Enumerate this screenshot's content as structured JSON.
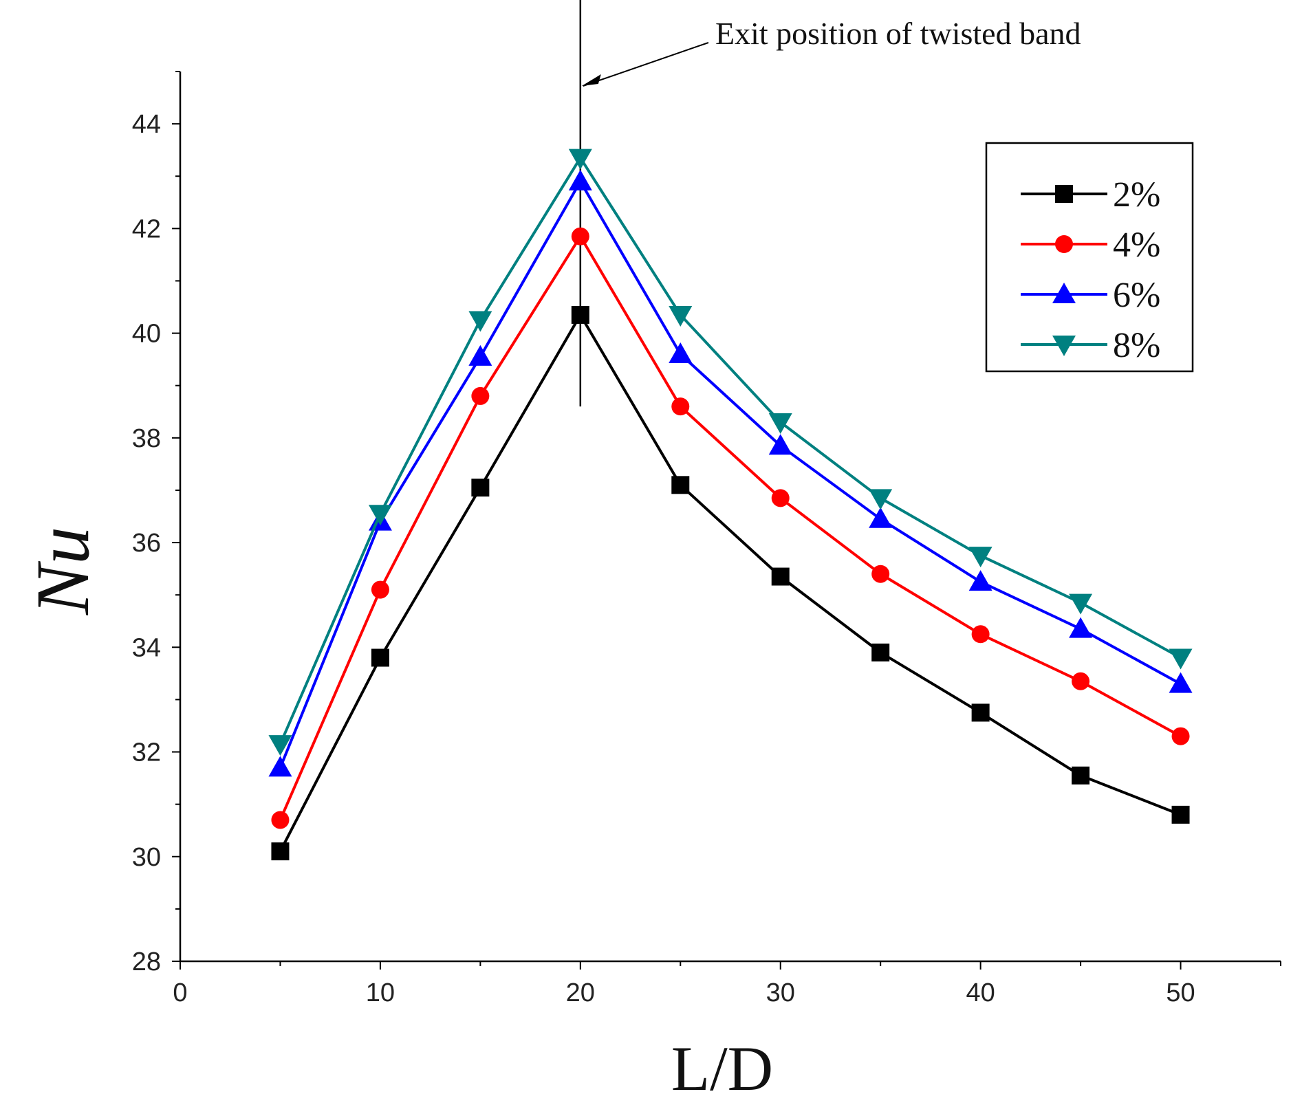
{
  "chart_data": {
    "type": "line",
    "title": "",
    "xlabel": "L/D",
    "ylabel": "Nu",
    "xlim": [
      0,
      55
    ],
    "ylim": [
      28,
      45
    ],
    "xticks": [
      0,
      10,
      20,
      30,
      40,
      50
    ],
    "yticks": [
      28,
      30,
      32,
      34,
      36,
      38,
      40,
      42,
      44
    ],
    "x": [
      5,
      10,
      15,
      20,
      25,
      30,
      35,
      40,
      45,
      50
    ],
    "series": [
      {
        "name": "2%",
        "color": "#000000",
        "marker": "square",
        "values": [
          30.1,
          33.8,
          37.05,
          40.35,
          37.1,
          35.35,
          33.9,
          32.75,
          31.55,
          30.8
        ]
      },
      {
        "name": "4%",
        "color": "#ff0000",
        "marker": "circle",
        "values": [
          30.7,
          35.1,
          38.8,
          41.85,
          38.6,
          36.85,
          35.4,
          34.25,
          33.35,
          32.3
        ]
      },
      {
        "name": "6%",
        "color": "#0000ff",
        "marker": "triangle-up",
        "values": [
          31.7,
          36.4,
          39.55,
          42.9,
          39.6,
          37.85,
          36.45,
          35.25,
          34.35,
          33.3
        ]
      },
      {
        "name": "8%",
        "color": "#008080",
        "marker": "triangle-down",
        "values": [
          32.15,
          36.55,
          40.25,
          43.35,
          40.35,
          38.3,
          36.85,
          35.75,
          34.85,
          33.8
        ]
      }
    ],
    "annotation": {
      "text": "Exit position of twisted band",
      "x": 20,
      "line_range": [
        38.6,
        46.8
      ]
    },
    "legend_position": "top-right",
    "grid": false
  }
}
